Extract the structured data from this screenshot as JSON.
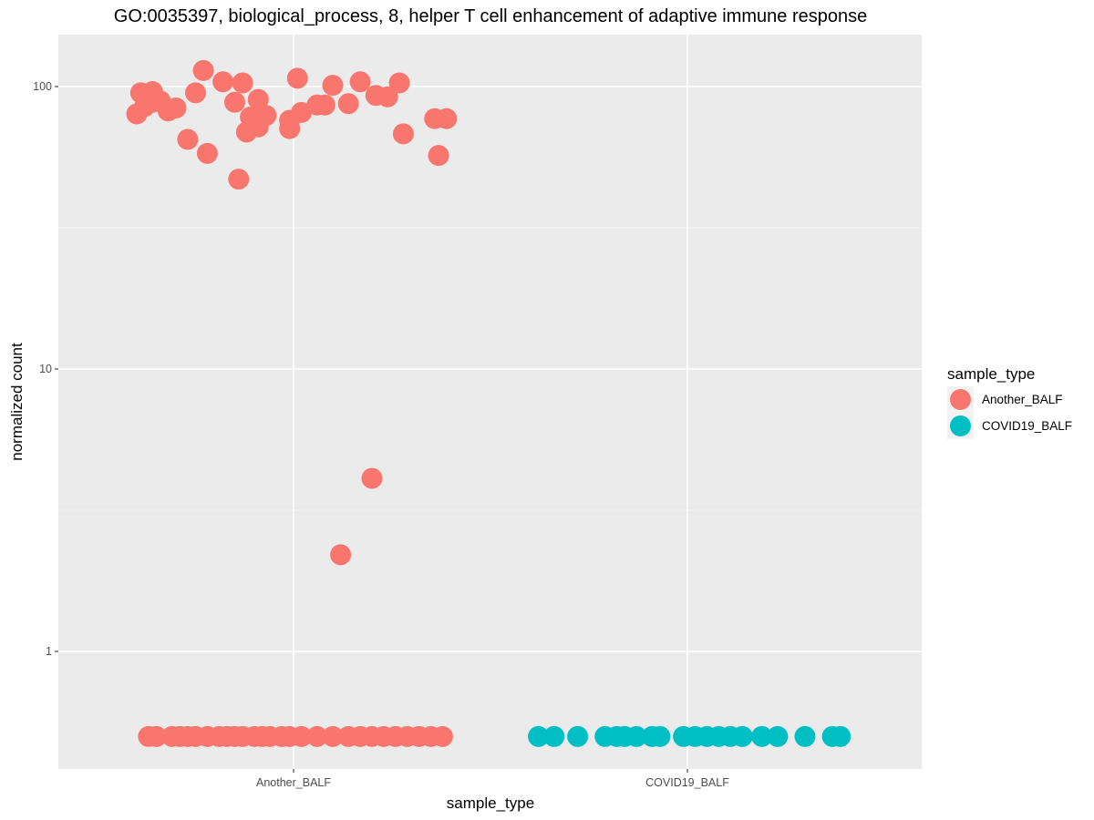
{
  "chart_data": {
    "type": "scatter",
    "title": "GO:0035397, biological_process, 8, helper T cell enhancement of adaptive immune response",
    "xlabel": "sample_type",
    "ylabel": "normalized count",
    "y_scale": "log10",
    "ylim": [
      0.39,
      150
    ],
    "categories": [
      "Another_BALF",
      "COVID19_BALF"
    ],
    "y_ticks": [
      {
        "value": 1,
        "label": "1"
      },
      {
        "value": 10,
        "label": "10"
      },
      {
        "value": 100,
        "label": "100"
      }
    ],
    "grid": true,
    "legend_position": "right",
    "legend_title": "sample_type",
    "series": [
      {
        "name": "Another_BALF",
        "color": "#F8766D",
        "points": [
          {
            "x": "Another_BALF",
            "jitter": -0.4,
            "y": 80
          },
          {
            "x": "Another_BALF",
            "jitter": -0.39,
            "y": 95
          },
          {
            "x": "Another_BALF",
            "jitter": -0.38,
            "y": 85
          },
          {
            "x": "Another_BALF",
            "jitter": -0.36,
            "y": 88
          },
          {
            "x": "Another_BALF",
            "jitter": -0.36,
            "y": 96
          },
          {
            "x": "Another_BALF",
            "jitter": -0.34,
            "y": 89
          },
          {
            "x": "Another_BALF",
            "jitter": -0.32,
            "y": 82
          },
          {
            "x": "Another_BALF",
            "jitter": -0.3,
            "y": 84
          },
          {
            "x": "Another_BALF",
            "jitter": -0.27,
            "y": 65
          },
          {
            "x": "Another_BALF",
            "jitter": -0.25,
            "y": 95
          },
          {
            "x": "Another_BALF",
            "jitter": -0.23,
            "y": 114
          },
          {
            "x": "Another_BALF",
            "jitter": -0.22,
            "y": 58
          },
          {
            "x": "Another_BALF",
            "jitter": -0.18,
            "y": 104
          },
          {
            "x": "Another_BALF",
            "jitter": -0.15,
            "y": 88
          },
          {
            "x": "Another_BALF",
            "jitter": -0.14,
            "y": 47
          },
          {
            "x": "Another_BALF",
            "jitter": -0.13,
            "y": 103
          },
          {
            "x": "Another_BALF",
            "jitter": -0.12,
            "y": 69
          },
          {
            "x": "Another_BALF",
            "jitter": -0.11,
            "y": 78
          },
          {
            "x": "Another_BALF",
            "jitter": -0.09,
            "y": 90
          },
          {
            "x": "Another_BALF",
            "jitter": -0.09,
            "y": 72
          },
          {
            "x": "Another_BALF",
            "jitter": -0.07,
            "y": 79
          },
          {
            "x": "Another_BALF",
            "jitter": -0.01,
            "y": 76
          },
          {
            "x": "Another_BALF",
            "jitter": -0.01,
            "y": 71
          },
          {
            "x": "Another_BALF",
            "jitter": 0.01,
            "y": 107
          },
          {
            "x": "Another_BALF",
            "jitter": 0.02,
            "y": 81
          },
          {
            "x": "Another_BALF",
            "jitter": 0.06,
            "y": 86
          },
          {
            "x": "Another_BALF",
            "jitter": 0.08,
            "y": 86
          },
          {
            "x": "Another_BALF",
            "jitter": 0.1,
            "y": 101
          },
          {
            "x": "Another_BALF",
            "jitter": 0.12,
            "y": 2.2
          },
          {
            "x": "Another_BALF",
            "jitter": 0.14,
            "y": 87
          },
          {
            "x": "Another_BALF",
            "jitter": 0.17,
            "y": 104
          },
          {
            "x": "Another_BALF",
            "jitter": 0.2,
            "y": 4.1
          },
          {
            "x": "Another_BALF",
            "jitter": 0.21,
            "y": 93
          },
          {
            "x": "Another_BALF",
            "jitter": 0.24,
            "y": 92
          },
          {
            "x": "Another_BALF",
            "jitter": 0.27,
            "y": 103
          },
          {
            "x": "Another_BALF",
            "jitter": 0.28,
            "y": 68
          },
          {
            "x": "Another_BALF",
            "jitter": 0.36,
            "y": 77
          },
          {
            "x": "Another_BALF",
            "jitter": 0.37,
            "y": 57
          },
          {
            "x": "Another_BALF",
            "jitter": 0.39,
            "y": 77
          },
          {
            "x": "Another_BALF",
            "jitter": -0.37,
            "y": 0.5
          },
          {
            "x": "Another_BALF",
            "jitter": -0.35,
            "y": 0.5
          },
          {
            "x": "Another_BALF",
            "jitter": -0.31,
            "y": 0.5
          },
          {
            "x": "Another_BALF",
            "jitter": -0.29,
            "y": 0.5
          },
          {
            "x": "Another_BALF",
            "jitter": -0.27,
            "y": 0.5
          },
          {
            "x": "Another_BALF",
            "jitter": -0.25,
            "y": 0.5
          },
          {
            "x": "Another_BALF",
            "jitter": -0.22,
            "y": 0.5
          },
          {
            "x": "Another_BALF",
            "jitter": -0.19,
            "y": 0.5
          },
          {
            "x": "Another_BALF",
            "jitter": -0.17,
            "y": 0.5
          },
          {
            "x": "Another_BALF",
            "jitter": -0.15,
            "y": 0.5
          },
          {
            "x": "Another_BALF",
            "jitter": -0.13,
            "y": 0.5
          },
          {
            "x": "Another_BALF",
            "jitter": -0.1,
            "y": 0.5
          },
          {
            "x": "Another_BALF",
            "jitter": -0.08,
            "y": 0.5
          },
          {
            "x": "Another_BALF",
            "jitter": -0.06,
            "y": 0.5
          },
          {
            "x": "Another_BALF",
            "jitter": -0.03,
            "y": 0.5
          },
          {
            "x": "Another_BALF",
            "jitter": -0.01,
            "y": 0.5
          },
          {
            "x": "Another_BALF",
            "jitter": 0.02,
            "y": 0.5
          },
          {
            "x": "Another_BALF",
            "jitter": 0.06,
            "y": 0.5
          },
          {
            "x": "Another_BALF",
            "jitter": 0.1,
            "y": 0.5
          },
          {
            "x": "Another_BALF",
            "jitter": 0.14,
            "y": 0.5
          },
          {
            "x": "Another_BALF",
            "jitter": 0.17,
            "y": 0.5
          },
          {
            "x": "Another_BALF",
            "jitter": 0.2,
            "y": 0.5
          },
          {
            "x": "Another_BALF",
            "jitter": 0.23,
            "y": 0.5
          },
          {
            "x": "Another_BALF",
            "jitter": 0.26,
            "y": 0.5
          },
          {
            "x": "Another_BALF",
            "jitter": 0.29,
            "y": 0.5
          },
          {
            "x": "Another_BALF",
            "jitter": 0.32,
            "y": 0.5
          },
          {
            "x": "Another_BALF",
            "jitter": 0.35,
            "y": 0.5
          },
          {
            "x": "Another_BALF",
            "jitter": 0.38,
            "y": 0.5
          }
        ]
      },
      {
        "name": "COVID19_BALF",
        "color": "#00BFC4",
        "points": [
          {
            "x": "COVID19_BALF",
            "jitter": -0.38,
            "y": 0.5
          },
          {
            "x": "COVID19_BALF",
            "jitter": -0.34,
            "y": 0.5
          },
          {
            "x": "COVID19_BALF",
            "jitter": -0.28,
            "y": 0.5
          },
          {
            "x": "COVID19_BALF",
            "jitter": -0.21,
            "y": 0.5
          },
          {
            "x": "COVID19_BALF",
            "jitter": -0.18,
            "y": 0.5
          },
          {
            "x": "COVID19_BALF",
            "jitter": -0.16,
            "y": 0.5
          },
          {
            "x": "COVID19_BALF",
            "jitter": -0.13,
            "y": 0.5
          },
          {
            "x": "COVID19_BALF",
            "jitter": -0.09,
            "y": 0.5
          },
          {
            "x": "COVID19_BALF",
            "jitter": -0.07,
            "y": 0.5
          },
          {
            "x": "COVID19_BALF",
            "jitter": -0.01,
            "y": 0.5
          },
          {
            "x": "COVID19_BALF",
            "jitter": 0.02,
            "y": 0.5
          },
          {
            "x": "COVID19_BALF",
            "jitter": 0.05,
            "y": 0.5
          },
          {
            "x": "COVID19_BALF",
            "jitter": 0.08,
            "y": 0.5
          },
          {
            "x": "COVID19_BALF",
            "jitter": 0.11,
            "y": 0.5
          },
          {
            "x": "COVID19_BALF",
            "jitter": 0.14,
            "y": 0.5
          },
          {
            "x": "COVID19_BALF",
            "jitter": 0.19,
            "y": 0.5
          },
          {
            "x": "COVID19_BALF",
            "jitter": 0.23,
            "y": 0.5
          },
          {
            "x": "COVID19_BALF",
            "jitter": 0.3,
            "y": 0.5
          },
          {
            "x": "COVID19_BALF",
            "jitter": 0.37,
            "y": 0.5
          },
          {
            "x": "COVID19_BALF",
            "jitter": 0.39,
            "y": 0.5
          }
        ]
      }
    ]
  },
  "colors": {
    "panel_background": "#EBEBEB",
    "grid_major": "#FFFFFF",
    "grid_minor": "#F5F5F5",
    "legend_key_background": "#F2F2F2"
  }
}
